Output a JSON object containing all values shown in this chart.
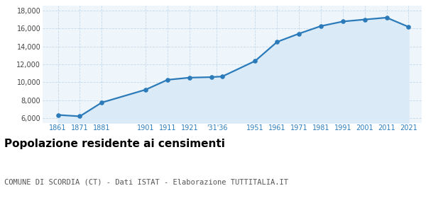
{
  "years": [
    1861,
    1871,
    1881,
    1901,
    1911,
    1921,
    1931,
    1936,
    1951,
    1961,
    1971,
    1981,
    1991,
    2001,
    2011,
    2021
  ],
  "population": [
    6370,
    6220,
    7750,
    9180,
    10280,
    10520,
    10580,
    10650,
    12380,
    14500,
    15420,
    16260,
    16770,
    16990,
    17200,
    16170
  ],
  "x_tick_labels": [
    "1861",
    "1871",
    "1881",
    "1901",
    "1911",
    "1921",
    "'31'36",
    "1951",
    "1961",
    "1971",
    "1981",
    "1991",
    "2001",
    "2011",
    "2021"
  ],
  "x_tick_positions": [
    1861,
    1871,
    1881,
    1901,
    1911,
    1921,
    1933.5,
    1951,
    1961,
    1971,
    1981,
    1991,
    2001,
    2011,
    2021
  ],
  "ylim": [
    5500,
    18500
  ],
  "yticks": [
    6000,
    8000,
    10000,
    12000,
    14000,
    16000,
    18000
  ],
  "line_color": "#2b7bba",
  "fill_color": "#daeaf7",
  "marker_color": "#2b7bba",
  "bg_color": "#eef5fb",
  "grid_color": "#c5d8ea",
  "title": "Popolazione residente ai censimenti",
  "subtitle": "COMUNE DI SCORDIA (CT) - Dati ISTAT - Elaborazione TUTTITALIA.IT",
  "title_fontsize": 11,
  "subtitle_fontsize": 7.5,
  "xlim_left": 1854,
  "xlim_right": 2027
}
